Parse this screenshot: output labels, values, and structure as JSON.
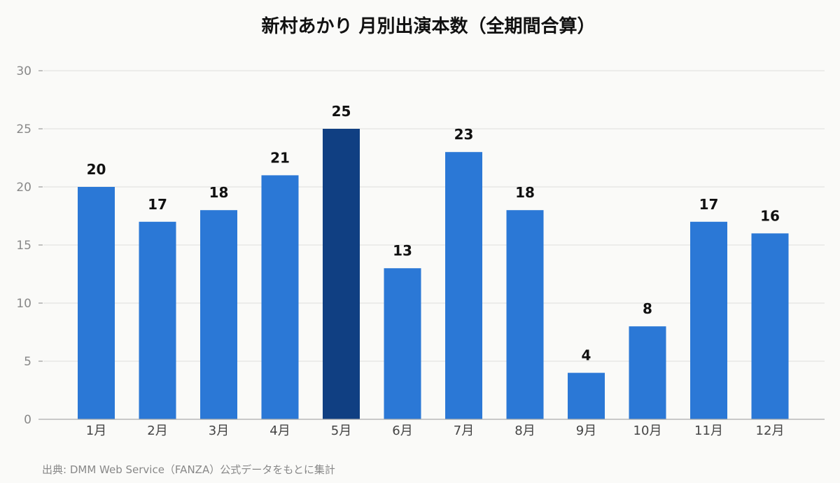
{
  "chart_data": {
    "type": "bar",
    "title": "新村あかり 月別出演本数（全期間合算）",
    "categories": [
      "1月",
      "2月",
      "3月",
      "4月",
      "5月",
      "6月",
      "7月",
      "8月",
      "9月",
      "10月",
      "11月",
      "12月"
    ],
    "values": [
      20,
      17,
      18,
      21,
      25,
      13,
      23,
      18,
      4,
      8,
      17,
      16
    ],
    "yticks": [
      0,
      5,
      10,
      15,
      20,
      25,
      30
    ],
    "ylim": [
      0,
      30
    ],
    "xlabel": "",
    "ylabel": "",
    "grid": true,
    "highlight_index": 4,
    "colors": {
      "bar": "#2b78d6",
      "highlight": "#103f82",
      "grid": "#dddddd",
      "background": "#fafaf8"
    },
    "source": "出典: DMM Web Service（FANZA）公式データをもとに集計"
  }
}
